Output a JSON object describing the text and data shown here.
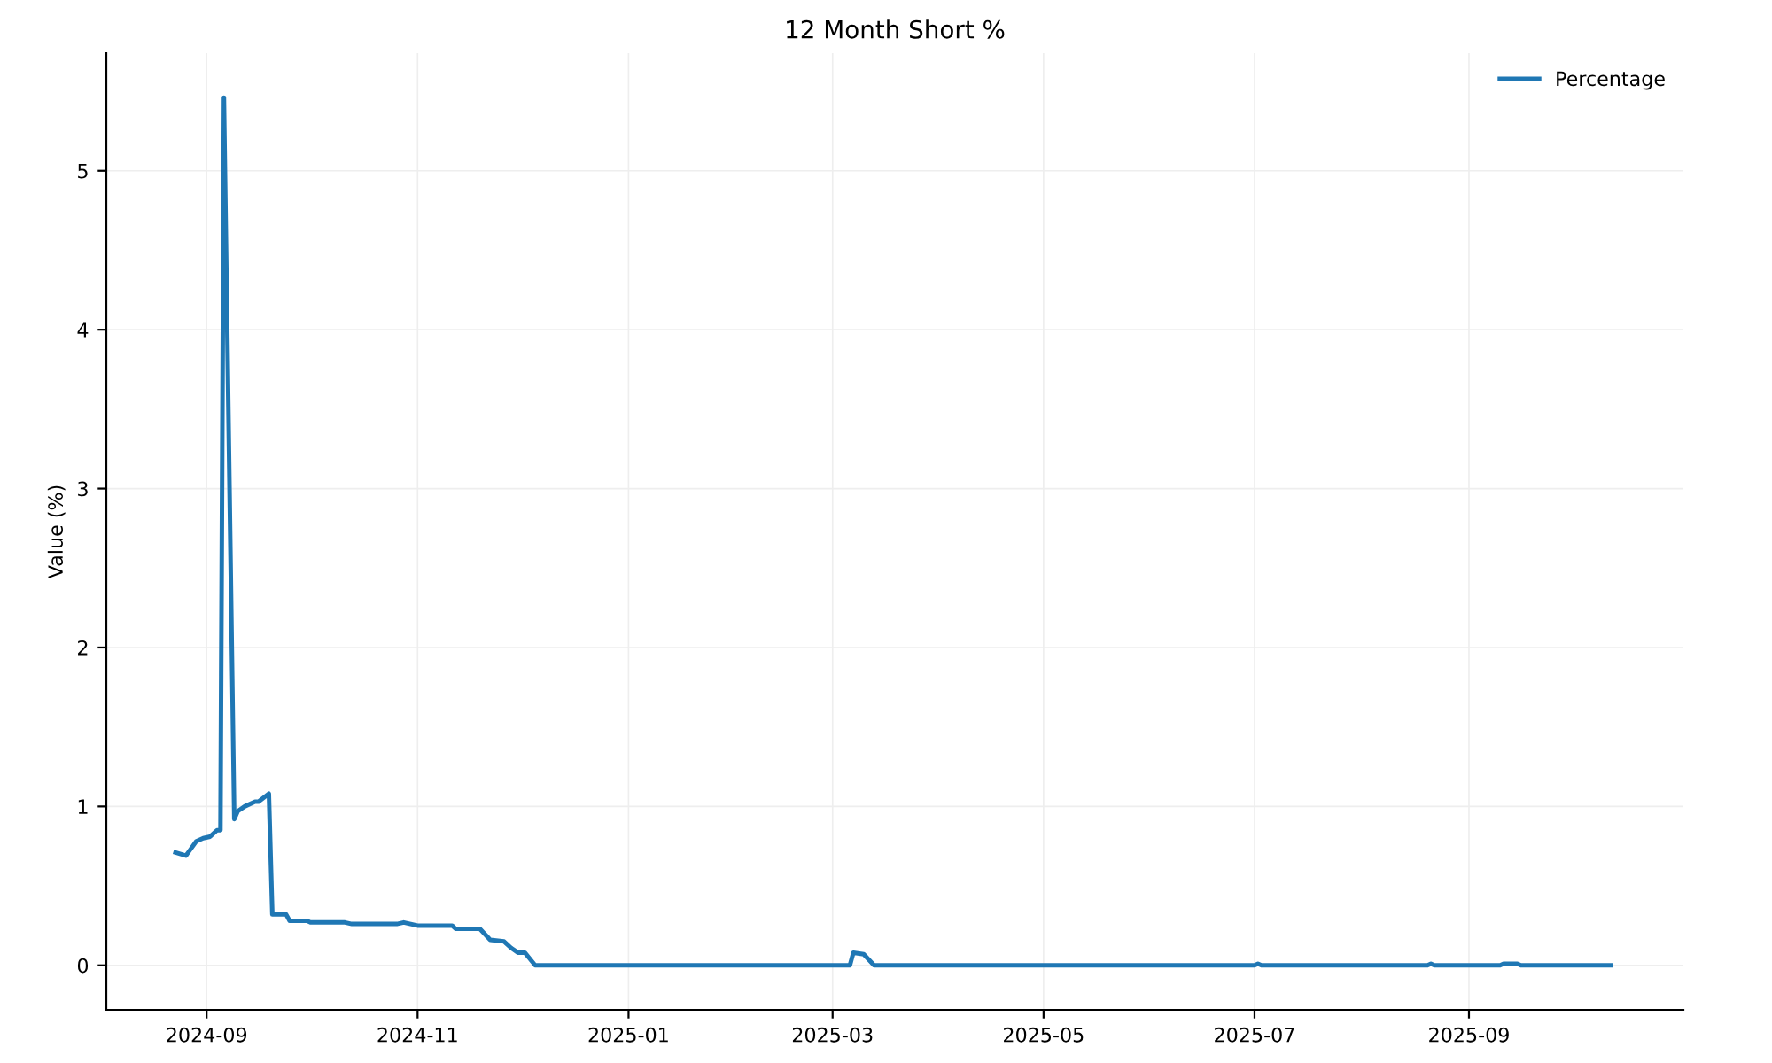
{
  "chart_data": {
    "type": "line",
    "title": "12 Month Short %",
    "ylabel": "Value (%)",
    "x": [
      "2024-08-23",
      "2024-08-26",
      "2024-08-27",
      "2024-08-29",
      "2024-08-31",
      "2024-09-02",
      "2024-09-04",
      "2024-09-05",
      "2024-09-06",
      "2024-09-09",
      "2024-09-10",
      "2024-09-12",
      "2024-09-15",
      "2024-09-16",
      "2024-09-19",
      "2024-09-20",
      "2024-09-24",
      "2024-09-25",
      "2024-09-30",
      "2024-10-01",
      "2024-10-11",
      "2024-10-13",
      "2024-10-26",
      "2024-10-28",
      "2024-10-30",
      "2024-11-01",
      "2024-11-11",
      "2024-11-12",
      "2024-11-19",
      "2024-11-22",
      "2024-11-26",
      "2024-11-28",
      "2024-11-30",
      "2024-12-02",
      "2024-12-05",
      "2025-03-06",
      "2025-03-07",
      "2025-03-10",
      "2025-03-13",
      "2025-07-01",
      "2025-07-02",
      "2025-07-03",
      "2025-08-20",
      "2025-08-21",
      "2025-08-22",
      "2025-09-10",
      "2025-09-11",
      "2025-09-15",
      "2025-09-16",
      "2025-10-12"
    ],
    "series": [
      {
        "name": "Percentage",
        "color": "#1f77b4",
        "values": [
          0.71,
          0.69,
          0.72,
          0.78,
          0.8,
          0.81,
          0.85,
          0.85,
          5.46,
          0.92,
          0.97,
          1.0,
          1.03,
          1.03,
          1.08,
          0.32,
          0.32,
          0.28,
          0.28,
          0.27,
          0.27,
          0.26,
          0.26,
          0.27,
          0.26,
          0.25,
          0.25,
          0.23,
          0.23,
          0.16,
          0.15,
          0.11,
          0.08,
          0.08,
          0.0,
          0.0,
          0.08,
          0.07,
          0.0,
          0.0,
          0.01,
          0.0,
          0.0,
          0.01,
          0.0,
          0.0,
          0.01,
          0.01,
          0.0,
          0.0
        ]
      }
    ],
    "xlim": [
      "2024-08-03",
      "2025-11-02"
    ],
    "xticks": [
      {
        "value": "2024-09-01",
        "label": "2024-09"
      },
      {
        "value": "2024-11-01",
        "label": "2024-11"
      },
      {
        "value": "2025-01-01",
        "label": "2025-01"
      },
      {
        "value": "2025-03-01",
        "label": "2025-03"
      },
      {
        "value": "2025-05-01",
        "label": "2025-05"
      },
      {
        "value": "2025-07-01",
        "label": "2025-07"
      },
      {
        "value": "2025-09-01",
        "label": "2025-09"
      }
    ],
    "ylim": [
      -0.28,
      5.74
    ],
    "yticks": [
      0,
      1,
      2,
      3,
      4,
      5
    ],
    "grid": true,
    "legend": "top right",
    "marker": "none",
    "line_style": "solid"
  }
}
